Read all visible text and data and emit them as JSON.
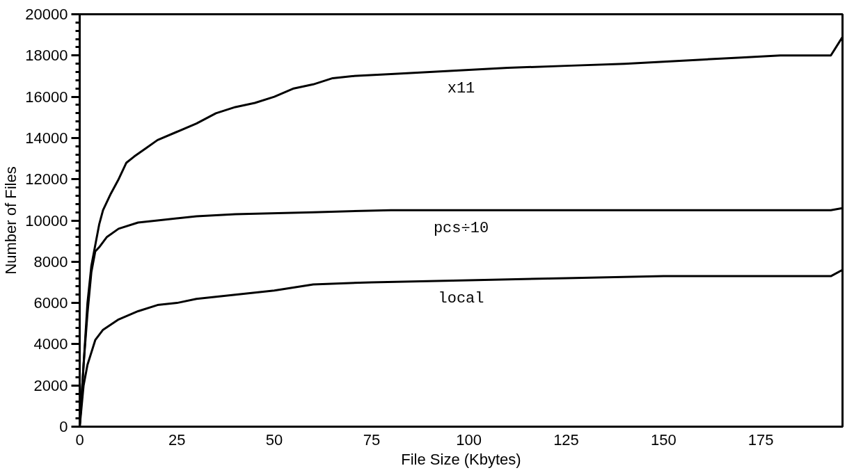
{
  "chart_data": {
    "type": "line",
    "xlabel": "File Size (Kbytes)",
    "ylabel": "Number of Files",
    "xlim": [
      0,
      196
    ],
    "ylim": [
      0,
      20000
    ],
    "xticks": [
      0,
      25,
      50,
      75,
      100,
      125,
      150,
      175
    ],
    "yticks": [
      0,
      2000,
      4000,
      6000,
      8000,
      10000,
      12000,
      14000,
      16000,
      18000,
      20000
    ],
    "grid": false,
    "legend": false,
    "marker": "none",
    "line_style": "solid",
    "series": [
      {
        "name": "x11",
        "color": "#000000",
        "x": [
          0,
          1,
          2,
          3,
          4,
          5,
          6,
          8,
          10,
          12,
          14,
          17,
          20,
          25,
          30,
          35,
          40,
          45,
          50,
          55,
          60,
          65,
          70,
          80,
          90,
          100,
          110,
          125,
          140,
          150,
          160,
          170,
          180,
          193,
          196
        ],
        "values": [
          0,
          3000,
          6000,
          7800,
          8800,
          9800,
          10500,
          11300,
          12000,
          12800,
          13100,
          13500,
          13900,
          14300,
          14700,
          15200,
          15500,
          15700,
          16000,
          16400,
          16600,
          16900,
          17000,
          17100,
          17200,
          17300,
          17400,
          17500,
          17600,
          17700,
          17800,
          17900,
          18000,
          18000,
          18900
        ]
      },
      {
        "name": "pcs÷10",
        "color": "#000000",
        "x": [
          0,
          1,
          2,
          3,
          4,
          5,
          7,
          10,
          15,
          20,
          30,
          40,
          60,
          80,
          120,
          193,
          196
        ],
        "values": [
          0,
          3000,
          5500,
          7500,
          8500,
          8700,
          9200,
          9600,
          9900,
          10000,
          10200,
          10300,
          10400,
          10500,
          10500,
          10500,
          10600
        ]
      },
      {
        "name": "local",
        "color": "#000000",
        "x": [
          0,
          1,
          2,
          4,
          6,
          10,
          15,
          20,
          25,
          30,
          40,
          50,
          60,
          75,
          100,
          125,
          150,
          193,
          196
        ],
        "values": [
          0,
          2000,
          3000,
          4200,
          4700,
          5200,
          5600,
          5900,
          6000,
          6200,
          6400,
          6600,
          6900,
          7000,
          7100,
          7200,
          7300,
          7300,
          7600
        ]
      }
    ]
  }
}
